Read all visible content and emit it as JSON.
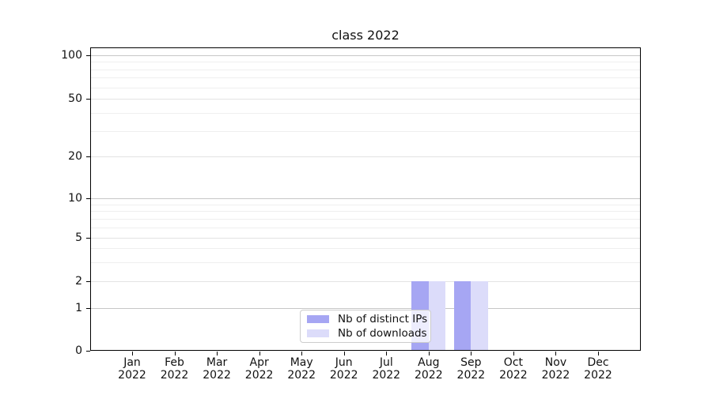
{
  "chart_data": {
    "type": "bar",
    "title": "class 2022",
    "categories": [
      "Jan 2022",
      "Feb 2022",
      "Mar 2022",
      "Apr 2022",
      "May 2022",
      "Jun 2022",
      "Jul 2022",
      "Aug 2022",
      "Sep 2022",
      "Oct 2022",
      "Nov 2022",
      "Dec 2022"
    ],
    "series": [
      {
        "name": "Nb of distinct IPs",
        "color": "#a6a6f3",
        "values": [
          0,
          0,
          0,
          0,
          0,
          0,
          0,
          2,
          2,
          0,
          0,
          0
        ]
      },
      {
        "name": "Nb of downloads",
        "color": "#dcdcfa",
        "values": [
          0,
          0,
          0,
          0,
          0,
          0,
          0,
          2,
          2,
          0,
          0,
          0
        ]
      }
    ],
    "xlabel": "",
    "ylabel": "",
    "yaxis": {
      "scale": "symlog",
      "ticks": [
        0,
        1,
        2,
        5,
        10,
        20,
        50,
        100
      ],
      "major_gridlines": [
        1,
        10,
        100
      ],
      "mid_gridlines": [
        2,
        5,
        20,
        50
      ],
      "minor_gridlines": [
        3,
        4,
        6,
        7,
        8,
        9,
        30,
        40,
        60,
        70,
        80,
        90
      ],
      "range": [
        0,
        110
      ]
    },
    "grid": "horizontal",
    "legend_position": "lower center"
  }
}
